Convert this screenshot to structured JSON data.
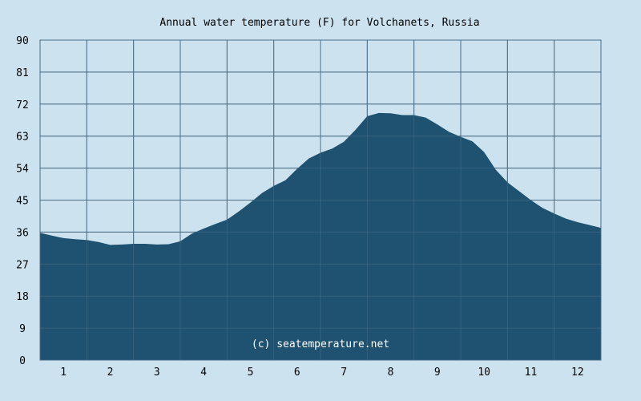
{
  "colors": {
    "background": "#cce3ef",
    "area_fill": "#1e5270",
    "grid": "#4a6f88"
  },
  "watermark": "(c) seatemperature.net",
  "chart_data": {
    "type": "area",
    "title": "Annual water temperature (F) for Volchanets, Russia",
    "xlabel": "",
    "ylabel": "",
    "ylim": [
      0,
      90
    ],
    "xlim": [
      0.5,
      12.5
    ],
    "yticks": [
      0,
      9,
      18,
      27,
      36,
      45,
      54,
      63,
      72,
      81,
      90
    ],
    "xticks": [
      1,
      2,
      3,
      4,
      5,
      6,
      7,
      8,
      9,
      10,
      11,
      12
    ],
    "grid": true,
    "series": [
      {
        "x": [
          0.5,
          0.75,
          1.0,
          1.25,
          1.5,
          1.75,
          2.0,
          2.25,
          2.5,
          2.75,
          3.0,
          3.25,
          3.5,
          3.75,
          4.0,
          4.25,
          4.5,
          4.75,
          5.0,
          5.25,
          5.5,
          5.75,
          6.0,
          6.25,
          6.5,
          6.75,
          7.0,
          7.25,
          7.5,
          7.75,
          8.0,
          8.25,
          8.5,
          8.75,
          9.0,
          9.25,
          9.5,
          9.75,
          10.0,
          10.25,
          10.5,
          10.75,
          11.0,
          11.25,
          11.5,
          11.75,
          12.0,
          12.25,
          12.5
        ],
        "values": [
          35.8,
          35.0,
          34.3,
          34.0,
          33.8,
          33.2,
          32.4,
          32.5,
          32.7,
          32.7,
          32.5,
          32.6,
          33.4,
          35.6,
          37.0,
          38.3,
          39.5,
          41.8,
          44.3,
          47.0,
          49.0,
          50.6,
          53.8,
          56.7,
          58.3,
          59.5,
          61.4,
          64.8,
          68.6,
          69.5,
          69.4,
          68.9,
          68.9,
          68.2,
          66.3,
          64.2,
          62.8,
          61.5,
          58.5,
          53.5,
          50.0,
          47.5,
          45.0,
          42.8,
          41.2,
          39.8,
          38.8,
          38.0,
          37.2
        ]
      }
    ]
  }
}
